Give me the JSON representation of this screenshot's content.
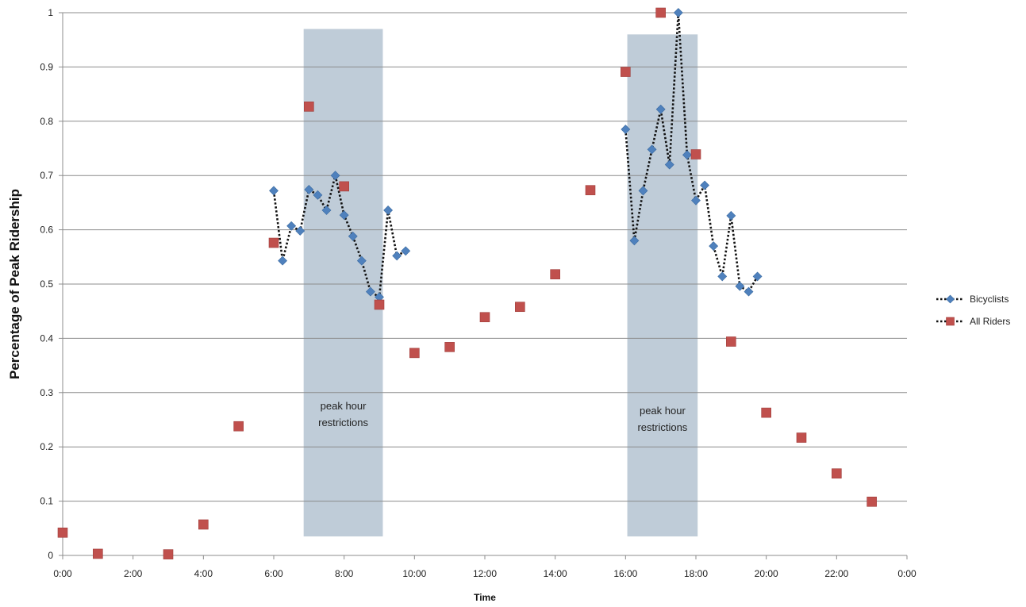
{
  "chart_data": {
    "type": "scatter",
    "title": "",
    "xlabel": "Time",
    "ylabel": "Percentage of Peak Ridership",
    "xlim": [
      0,
      24
    ],
    "ylim": [
      0,
      1
    ],
    "x_ticks": [
      "0:00",
      "2:00",
      "4:00",
      "6:00",
      "8:00",
      "10:00",
      "12:00",
      "14:00",
      "16:00",
      "18:00",
      "20:00",
      "22:00",
      "0:00"
    ],
    "y_ticks": [
      "0",
      "0.1",
      "0.2",
      "0.3",
      "0.4",
      "0.5",
      "0.6",
      "0.7",
      "0.8",
      "0.9",
      "1"
    ],
    "grid": "horizontal",
    "legend_position": "right",
    "shaded_regions": [
      {
        "label": "peak hour restrictions",
        "x_start": 6.85,
        "x_end": 9.1,
        "y_top": 0.97,
        "y_bottom": 0.035
      },
      {
        "label": "peak hour restrictions",
        "x_start": 16.05,
        "x_end": 18.05,
        "y_top": 0.96,
        "y_bottom": 0.035
      }
    ],
    "series": [
      {
        "name": "Bicyclists",
        "color": "#4f81bd",
        "marker": "diamond",
        "line": "dotted",
        "segments": [
          [
            {
              "x": 6.0,
              "y": 0.672
            },
            {
              "x": 6.25,
              "y": 0.543
            },
            {
              "x": 6.5,
              "y": 0.607
            },
            {
              "x": 6.75,
              "y": 0.598
            },
            {
              "x": 7.0,
              "y": 0.674
            },
            {
              "x": 7.25,
              "y": 0.664
            },
            {
              "x": 7.5,
              "y": 0.636
            },
            {
              "x": 7.75,
              "y": 0.7
            },
            {
              "x": 8.0,
              "y": 0.627
            },
            {
              "x": 8.25,
              "y": 0.588
            },
            {
              "x": 8.5,
              "y": 0.543
            },
            {
              "x": 8.75,
              "y": 0.486
            },
            {
              "x": 9.0,
              "y": 0.476
            },
            {
              "x": 9.25,
              "y": 0.636
            },
            {
              "x": 9.5,
              "y": 0.552
            },
            {
              "x": 9.75,
              "y": 0.561
            }
          ],
          [
            {
              "x": 16.0,
              "y": 0.785
            },
            {
              "x": 16.25,
              "y": 0.58
            },
            {
              "x": 16.5,
              "y": 0.672
            },
            {
              "x": 16.75,
              "y": 0.748
            },
            {
              "x": 17.0,
              "y": 0.822
            },
            {
              "x": 17.25,
              "y": 0.72
            },
            {
              "x": 17.5,
              "y": 1.0
            },
            {
              "x": 17.75,
              "y": 0.738
            },
            {
              "x": 18.0,
              "y": 0.654
            },
            {
              "x": 18.25,
              "y": 0.682
            },
            {
              "x": 18.5,
              "y": 0.57
            },
            {
              "x": 18.75,
              "y": 0.514
            },
            {
              "x": 19.0,
              "y": 0.626
            },
            {
              "x": 19.25,
              "y": 0.496
            },
            {
              "x": 19.5,
              "y": 0.486
            },
            {
              "x": 19.75,
              "y": 0.514
            }
          ]
        ]
      },
      {
        "name": "All Riders",
        "color": "#c0504d",
        "marker": "square",
        "line": "none",
        "points": [
          {
            "x": 0,
            "y": 0.042
          },
          {
            "x": 1,
            "y": 0.003
          },
          {
            "x": 3,
            "y": 0.002
          },
          {
            "x": 4,
            "y": 0.057
          },
          {
            "x": 5,
            "y": 0.238
          },
          {
            "x": 6,
            "y": 0.576
          },
          {
            "x": 7,
            "y": 0.827
          },
          {
            "x": 8,
            "y": 0.68
          },
          {
            "x": 9,
            "y": 0.462
          },
          {
            "x": 10,
            "y": 0.373
          },
          {
            "x": 11,
            "y": 0.384
          },
          {
            "x": 12,
            "y": 0.439
          },
          {
            "x": 13,
            "y": 0.458
          },
          {
            "x": 14,
            "y": 0.518
          },
          {
            "x": 15,
            "y": 0.673
          },
          {
            "x": 16,
            "y": 0.891
          },
          {
            "x": 17,
            "y": 1.0
          },
          {
            "x": 18,
            "y": 0.739
          },
          {
            "x": 19,
            "y": 0.394
          },
          {
            "x": 20,
            "y": 0.263
          },
          {
            "x": 21,
            "y": 0.217
          },
          {
            "x": 22,
            "y": 0.151
          },
          {
            "x": 23,
            "y": 0.099
          }
        ]
      }
    ]
  }
}
